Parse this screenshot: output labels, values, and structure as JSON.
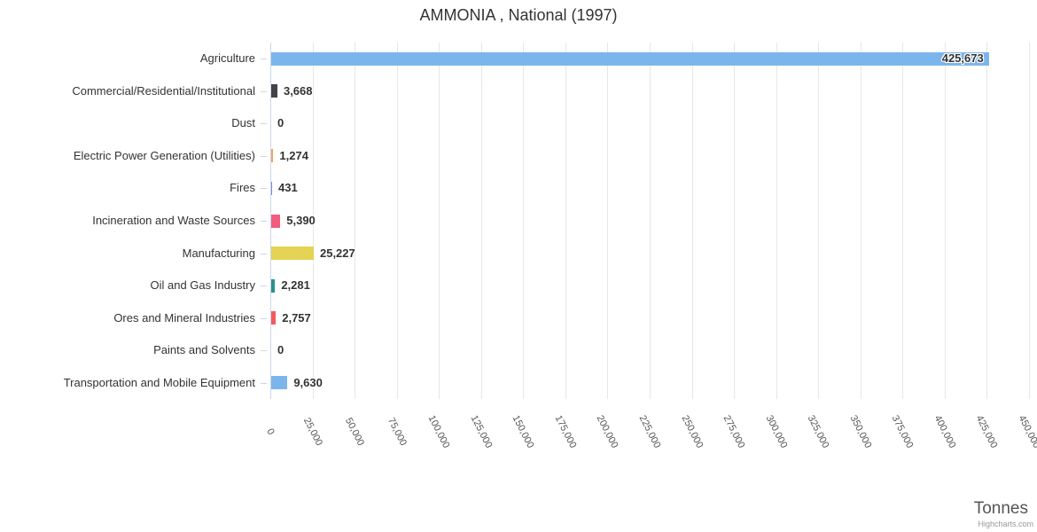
{
  "title": "AMMONIA , National (1997)",
  "credits": "Highcharts.com",
  "chart_data": {
    "type": "bar",
    "orientation": "horizontal",
    "title": "AMMONIA , National (1997)",
    "xlabel": "Tonnes",
    "ylabel": "",
    "categories": [
      "Agriculture",
      "Commercial/Residential/Institutional",
      "Dust",
      "Electric Power Generation (Utilities)",
      "Fires",
      "Incineration and Waste Sources",
      "Manufacturing",
      "Oil and Gas Industry",
      "Ores and Mineral Industries",
      "Paints and Solvents",
      "Transportation and Mobile Equipment"
    ],
    "values": [
      425673,
      3668,
      0,
      1274,
      431,
      5390,
      25227,
      2281,
      2757,
      0,
      9630
    ],
    "value_labels": [
      "425,673",
      "3,668",
      "0",
      "1,274",
      "431",
      "5,390",
      "25,227",
      "2,281",
      "2,757",
      "0",
      "9,630"
    ],
    "bar_colors": [
      "#7cb5ec",
      "#434348",
      "#90ed7d",
      "#f7a35c",
      "#8085e9",
      "#f15c80",
      "#e4d354",
      "#2b908f",
      "#f45b5b",
      "#91e8e1",
      "#7cb5ec"
    ],
    "xlim": [
      0,
      450000
    ],
    "tick_interval": 25000,
    "x_tick_labels": [
      "0",
      "25,000",
      "50,000",
      "75,000",
      "100,000",
      "125,000",
      "150,000",
      "175,000",
      "200,000",
      "225,000",
      "250,000",
      "275,000",
      "300,000",
      "325,000",
      "350,000",
      "375,000",
      "400,000",
      "425,000",
      "450,000"
    ],
    "grid": true,
    "legend": false,
    "colors": {
      "grid_line": "#e6e6e6",
      "axis_line": "#ccd6eb",
      "text": "#333333",
      "axis_label": "#555555"
    }
  }
}
